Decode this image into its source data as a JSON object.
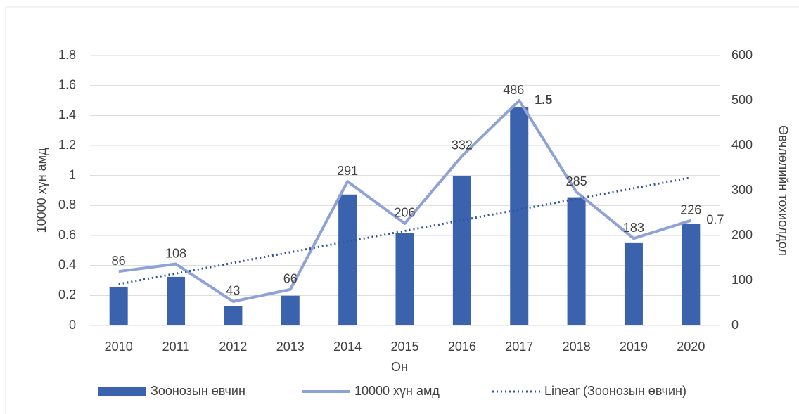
{
  "chart_data": {
    "type": "combo",
    "x_label": "Он",
    "y_label": "10000 хүн амд",
    "y2_label": "Өвчлөлийн тохиолдол",
    "categories": [
      "2010",
      "2011",
      "2012",
      "2013",
      "2014",
      "2015",
      "2016",
      "2017",
      "2018",
      "2019",
      "2020"
    ],
    "series": [
      {
        "name": "Зоонозын өвчин",
        "type": "bar",
        "axis": "y2",
        "color": "#3a62ad",
        "values": [
          86,
          108,
          43,
          66,
          291,
          206,
          332,
          486,
          285,
          183,
          226
        ]
      },
      {
        "name": "10000 хүн амд",
        "type": "line",
        "color": "#8ea2d6",
        "values": [
          0.36,
          0.41,
          0.16,
          0.24,
          0.96,
          0.68,
          1.13,
          1.5,
          0.89,
          0.58,
          0.7
        ],
        "value_labels": [
          null,
          null,
          null,
          null,
          null,
          null,
          null,
          "1.5",
          null,
          null,
          "0.7"
        ],
        "label_color": "#c00000"
      },
      {
        "name": "Linear (Зоонозын өвчин)",
        "type": "trend",
        "axis": "y2",
        "color": "#2f5597",
        "values": [
          91.7,
          115.4,
          139.1,
          162.8,
          186.5,
          210.2,
          233.9,
          257.6,
          281.3,
          305.0,
          328.7
        ]
      }
    ],
    "ylim": [
      0,
      1.8
    ],
    "yticks": [
      0,
      0.2,
      0.4,
      0.6,
      0.8,
      1,
      1.2,
      1.4,
      1.6,
      1.8
    ],
    "y2lim": [
      0,
      600
    ],
    "y2ticks": [
      0,
      100,
      200,
      300,
      400,
      500,
      600
    ],
    "grid": true,
    "legend": "bottom"
  }
}
